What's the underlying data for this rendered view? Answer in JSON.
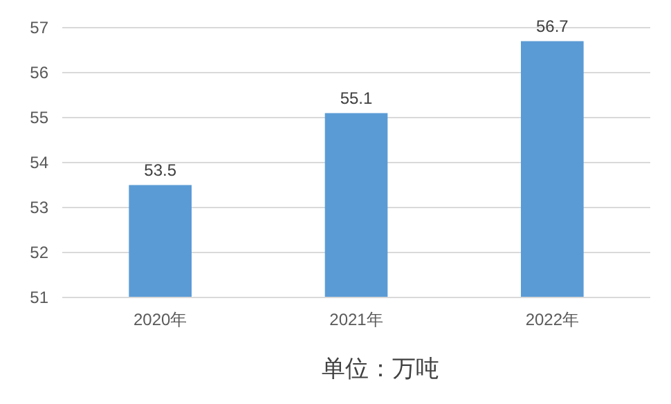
{
  "chart_data": {
    "type": "bar",
    "categories": [
      "2020年",
      "2021年",
      "2022年"
    ],
    "values": [
      53.5,
      55.1,
      56.7
    ],
    "color": "#5b9bd5",
    "ylim": [
      51,
      57
    ],
    "yticks": [
      51,
      52,
      53,
      54,
      55,
      56,
      57
    ],
    "grid": "y",
    "data_labels": true,
    "annotations": [
      "单位：万吨"
    ]
  }
}
